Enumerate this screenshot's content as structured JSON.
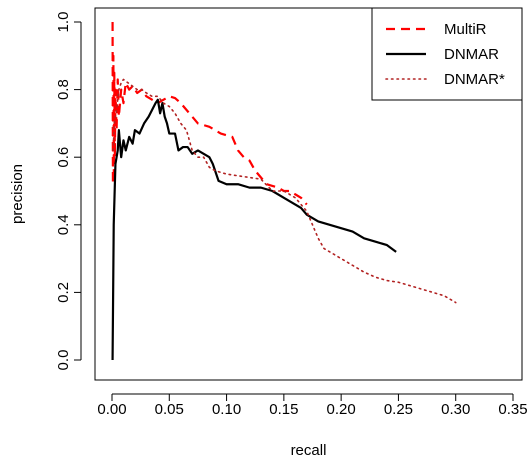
{
  "chart_data": {
    "type": "line",
    "title": "",
    "xlabel": "recall",
    "ylabel": "precision",
    "xlim": [
      0.0,
      0.35
    ],
    "ylim": [
      0.0,
      1.0
    ],
    "xticks": [
      "0.00",
      "0.05",
      "0.10",
      "0.15",
      "0.20",
      "0.25",
      "0.30",
      "0.35"
    ],
    "yticks": [
      "0.0",
      "0.2",
      "0.4",
      "0.6",
      "0.8",
      "1.0"
    ],
    "grid": false,
    "legend_position": "top-right",
    "series": [
      {
        "name": "MultiR",
        "color": "#ff0000",
        "style": "dashed",
        "points": [
          [
            0.0005,
            1.0
          ],
          [
            0.0008,
            0.52
          ],
          [
            0.0012,
            0.9
          ],
          [
            0.0016,
            0.55
          ],
          [
            0.002,
            0.85
          ],
          [
            0.0025,
            0.6
          ],
          [
            0.003,
            0.8
          ],
          [
            0.004,
            0.68
          ],
          [
            0.005,
            0.83
          ],
          [
            0.006,
            0.72
          ],
          [
            0.008,
            0.8
          ],
          [
            0.01,
            0.76
          ],
          [
            0.012,
            0.82
          ],
          [
            0.015,
            0.8
          ],
          [
            0.018,
            0.81
          ],
          [
            0.022,
            0.79
          ],
          [
            0.026,
            0.8
          ],
          [
            0.03,
            0.78
          ],
          [
            0.035,
            0.77
          ],
          [
            0.04,
            0.76
          ],
          [
            0.045,
            0.77
          ],
          [
            0.05,
            0.78
          ],
          [
            0.055,
            0.775
          ],
          [
            0.06,
            0.76
          ],
          [
            0.065,
            0.74
          ],
          [
            0.07,
            0.72
          ],
          [
            0.075,
            0.7
          ],
          [
            0.08,
            0.695
          ],
          [
            0.085,
            0.69
          ],
          [
            0.09,
            0.68
          ],
          [
            0.095,
            0.67
          ],
          [
            0.1,
            0.665
          ],
          [
            0.105,
            0.66
          ],
          [
            0.11,
            0.62
          ],
          [
            0.115,
            0.6
          ],
          [
            0.12,
            0.59
          ],
          [
            0.125,
            0.56
          ],
          [
            0.13,
            0.54
          ],
          [
            0.135,
            0.52
          ],
          [
            0.14,
            0.515
          ],
          [
            0.145,
            0.51
          ],
          [
            0.15,
            0.5
          ],
          [
            0.155,
            0.5
          ],
          [
            0.16,
            0.49
          ],
          [
            0.165,
            0.48
          ],
          [
            0.17,
            0.46
          ]
        ]
      },
      {
        "name": "DNMAR",
        "color": "#000000",
        "style": "solid",
        "points": [
          [
            0.0005,
            0.0
          ],
          [
            0.0015,
            0.4
          ],
          [
            0.003,
            0.58
          ],
          [
            0.005,
            0.62
          ],
          [
            0.006,
            0.68
          ],
          [
            0.008,
            0.6
          ],
          [
            0.01,
            0.65
          ],
          [
            0.012,
            0.62
          ],
          [
            0.015,
            0.66
          ],
          [
            0.018,
            0.64
          ],
          [
            0.02,
            0.68
          ],
          [
            0.024,
            0.67
          ],
          [
            0.028,
            0.7
          ],
          [
            0.032,
            0.72
          ],
          [
            0.035,
            0.74
          ],
          [
            0.038,
            0.76
          ],
          [
            0.04,
            0.77
          ],
          [
            0.042,
            0.73
          ],
          [
            0.044,
            0.76
          ],
          [
            0.046,
            0.72
          ],
          [
            0.048,
            0.7
          ],
          [
            0.05,
            0.67
          ],
          [
            0.055,
            0.67
          ],
          [
            0.058,
            0.62
          ],
          [
            0.062,
            0.63
          ],
          [
            0.066,
            0.63
          ],
          [
            0.07,
            0.61
          ],
          [
            0.075,
            0.62
          ],
          [
            0.08,
            0.61
          ],
          [
            0.085,
            0.6
          ],
          [
            0.088,
            0.58
          ],
          [
            0.09,
            0.56
          ],
          [
            0.093,
            0.53
          ],
          [
            0.1,
            0.52
          ],
          [
            0.11,
            0.52
          ],
          [
            0.12,
            0.51
          ],
          [
            0.13,
            0.51
          ],
          [
            0.14,
            0.5
          ],
          [
            0.15,
            0.48
          ],
          [
            0.16,
            0.46
          ],
          [
            0.165,
            0.45
          ],
          [
            0.17,
            0.43
          ],
          [
            0.175,
            0.42
          ],
          [
            0.18,
            0.41
          ],
          [
            0.19,
            0.4
          ],
          [
            0.2,
            0.39
          ],
          [
            0.21,
            0.38
          ],
          [
            0.22,
            0.36
          ],
          [
            0.23,
            0.35
          ],
          [
            0.24,
            0.34
          ],
          [
            0.248,
            0.32
          ]
        ]
      },
      {
        "name": "DNMAR*",
        "color": "#b22222",
        "style": "dotted",
        "points": [
          [
            0.001,
            0.62
          ],
          [
            0.002,
            0.7
          ],
          [
            0.004,
            0.74
          ],
          [
            0.006,
            0.8
          ],
          [
            0.008,
            0.82
          ],
          [
            0.01,
            0.83
          ],
          [
            0.014,
            0.82
          ],
          [
            0.018,
            0.81
          ],
          [
            0.022,
            0.8
          ],
          [
            0.026,
            0.8
          ],
          [
            0.03,
            0.79
          ],
          [
            0.035,
            0.78
          ],
          [
            0.04,
            0.78
          ],
          [
            0.045,
            0.76
          ],
          [
            0.05,
            0.75
          ],
          [
            0.055,
            0.73
          ],
          [
            0.06,
            0.7
          ],
          [
            0.065,
            0.68
          ],
          [
            0.07,
            0.62
          ],
          [
            0.075,
            0.6
          ],
          [
            0.08,
            0.6
          ],
          [
            0.085,
            0.57
          ],
          [
            0.09,
            0.56
          ],
          [
            0.1,
            0.55
          ],
          [
            0.11,
            0.545
          ],
          [
            0.12,
            0.54
          ],
          [
            0.13,
            0.535
          ],
          [
            0.14,
            0.5
          ],
          [
            0.15,
            0.5
          ],
          [
            0.155,
            0.49
          ],
          [
            0.16,
            0.48
          ],
          [
            0.165,
            0.46
          ],
          [
            0.17,
            0.44
          ],
          [
            0.175,
            0.4
          ],
          [
            0.18,
            0.36
          ],
          [
            0.185,
            0.33
          ],
          [
            0.19,
            0.32
          ],
          [
            0.2,
            0.3
          ],
          [
            0.21,
            0.28
          ],
          [
            0.22,
            0.26
          ],
          [
            0.23,
            0.245
          ],
          [
            0.24,
            0.235
          ],
          [
            0.25,
            0.23
          ],
          [
            0.26,
            0.22
          ],
          [
            0.27,
            0.21
          ],
          [
            0.28,
            0.2
          ],
          [
            0.29,
            0.19
          ],
          [
            0.3,
            0.17
          ]
        ]
      }
    ]
  }
}
